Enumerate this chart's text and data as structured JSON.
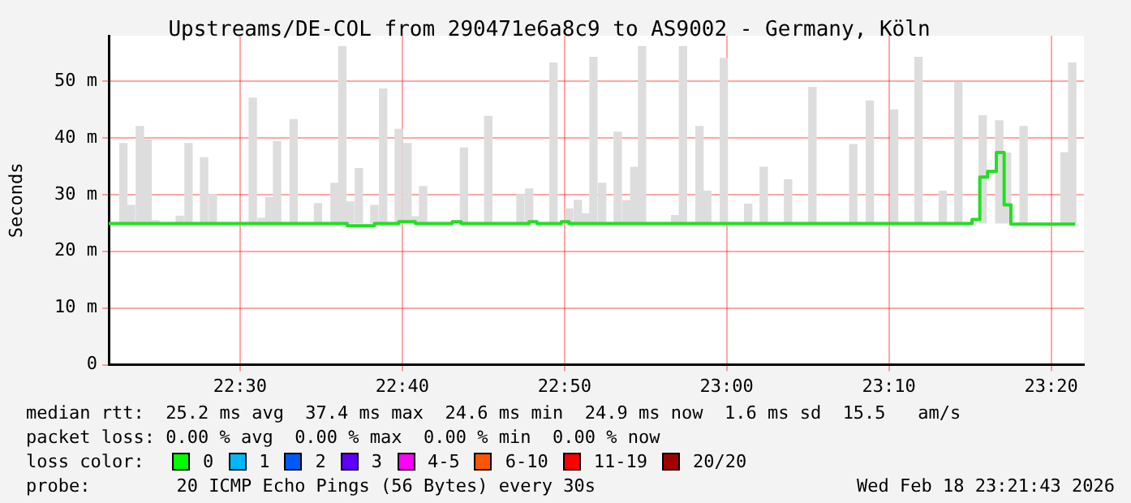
{
  "chart_data": {
    "type": "step",
    "title": "Upstreams/DE-COL from 290471e6a8c9 to AS9002 - Germany, Köln",
    "ylabel": "Seconds",
    "xlim": [
      22.365,
      23.367
    ],
    "xticks": [
      {
        "value": 22.5,
        "label": "22:30"
      },
      {
        "value": 22.6667,
        "label": "22:40"
      },
      {
        "value": 22.8333,
        "label": "22:50"
      },
      {
        "value": 23,
        "label": "23:00"
      },
      {
        "value": 23.1667,
        "label": "23:10"
      },
      {
        "value": 23.3333,
        "label": "23:20"
      }
    ],
    "ylim": [
      0,
      58
    ],
    "yticks": [
      0,
      {
        "value": 10,
        "label": "10 m"
      },
      {
        "value": 20,
        "label": "20 m"
      },
      {
        "value": 30,
        "label": "30 m"
      },
      {
        "value": 40,
        "label": "40 m"
      },
      {
        "value": 50,
        "label": "50 m"
      }
    ],
    "grid": true,
    "legend": false,
    "marker": "none",
    "series": [
      {
        "type": "bar",
        "color": "#dddddd",
        "x": [
          22.38,
          22.388,
          22.397,
          22.405,
          22.413,
          22.438,
          22.447,
          22.463,
          22.472,
          22.513,
          22.522,
          22.53,
          22.538,
          22.555,
          22.58,
          22.597,
          22.605,
          22.613,
          22.622,
          22.638,
          22.647,
          22.663,
          22.672,
          22.68,
          22.688,
          22.73,
          22.755,
          22.788,
          22.797,
          22.822,
          22.838,
          22.847,
          22.855,
          22.863,
          22.872,
          22.888,
          22.897,
          22.905,
          22.913,
          22.947,
          22.955,
          22.972,
          22.98,
          22.997,
          23.022,
          23.038,
          23.063,
          23.088,
          23.13,
          23.147,
          23.172,
          23.197,
          23.222,
          23.238,
          23.263,
          23.28,
          23.288,
          23.305,
          23.347,
          23.355
        ],
        "values": [
          14.0,
          3.1,
          17.0,
          14.6,
          0.4,
          1.2,
          14.0,
          11.5,
          5.0,
          22.0,
          0.8,
          4.5,
          14.3,
          18.2,
          3.4,
          7.0,
          31.1,
          3.7,
          9.6,
          3.1,
          23.6,
          16.5,
          14.0,
          1.1,
          6.4,
          13.2,
          18.8,
          5.0,
          6.0,
          28.2,
          2.5,
          4.0,
          1.6,
          29.2,
          7.0,
          16.0,
          3.9,
          9.8,
          31.1,
          1.3,
          31.1,
          17.0,
          5.6,
          29.0,
          3.3,
          9.8,
          7.6,
          23.9,
          13.8,
          21.5,
          19.9,
          29.2,
          5.6,
          24.8,
          18.9,
          18.0,
          12.3,
          17.0,
          12.4,
          28.2
        ],
        "base": [
          25,
          25,
          25,
          25,
          25,
          25,
          25,
          25,
          25,
          25,
          25,
          25,
          25,
          25,
          25,
          25,
          25,
          25,
          25,
          25,
          25,
          25,
          25,
          25,
          25,
          25,
          25,
          25,
          25,
          25,
          25,
          25,
          25,
          25,
          25,
          25,
          25,
          25,
          25,
          25,
          25,
          25,
          25,
          25,
          25,
          25,
          25,
          25,
          25,
          25,
          25,
          25,
          25,
          25,
          25,
          25,
          25,
          25,
          25,
          25
        ]
      },
      {
        "color": "#20e020",
        "x": [
          22.365,
          22.61,
          22.638,
          22.663,
          22.68,
          22.718,
          22.727,
          22.797,
          22.805,
          22.83,
          22.838,
          23.252,
          23.26,
          23.268,
          23.277,
          23.285,
          23.292,
          23.358
        ],
        "values": [
          24.9,
          24.5,
          24.9,
          25.2,
          24.9,
          25.2,
          24.9,
          25.2,
          24.9,
          25.2,
          24.9,
          25.6,
          33.1,
          34.1,
          37.4,
          28.2,
          24.8,
          24.8
        ]
      }
    ],
    "annotations": [
      "median rtt:  25.2 ms avg  37.4 ms max  24.6 ms min  24.9 ms now  1.6 ms sd  15.5   am/s",
      "packet loss: 0.00 % avg  0.00 % max  0.00 % min  0.00 % now",
      "loss color:",
      "0",
      "1",
      "2",
      "3",
      "4-5",
      "6-10",
      "11-19",
      "20/20",
      "probe:        20 ICMP Echo Pings (56 Bytes) every 30s",
      "Wed Feb 18 23:21:43 2026"
    ]
  }
}
